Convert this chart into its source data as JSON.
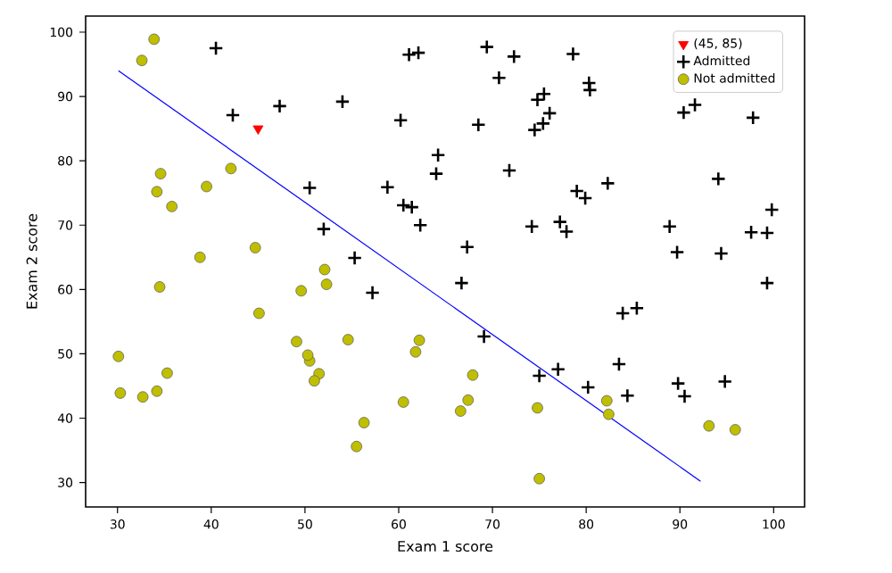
{
  "chart_data": {
    "type": "scatter",
    "xlabel": "Exam 1 score",
    "ylabel": "Exam 2 score",
    "xlim": [
      26.6,
      103.3
    ],
    "ylim": [
      26.2,
      102.5
    ],
    "xticks": [
      30,
      40,
      50,
      60,
      70,
      80,
      90,
      100
    ],
    "yticks": [
      30,
      40,
      50,
      60,
      70,
      80,
      90,
      100
    ],
    "legend": "top right",
    "grid": false,
    "series": [
      {
        "name": "(45, 85)",
        "color": "#ff0000",
        "marker": "triangle",
        "x": [
          45
        ],
        "values": [
          85
        ]
      },
      {
        "name": "Admitted",
        "color": "#000000",
        "marker": "cross",
        "x": [
          60.2,
          79.0,
          61.1,
          75.0,
          76.1,
          84.4,
          82.3,
          69.4,
          54.0,
          69.1,
          70.7,
          77.0,
          89.7,
          77.9,
          62.3,
          80.2,
          61.4,
          85.4,
          52.0,
          64.2,
          83.9,
          94.4,
          77.2,
          97.8,
          62.1,
          91.6,
          79.9,
          99.3,
          90.5,
          97.6,
          74.2,
          71.8,
          75.4,
          40.5,
          80.3,
          66.7,
          64.0,
          72.3,
          60.5,
          58.8,
          99.8,
          47.3,
          50.5,
          88.9,
          94.8,
          67.3,
          57.2,
          80.4,
          68.5,
          75.5,
          78.6,
          94.1,
          90.4,
          74.5,
          89.8,
          83.5,
          42.3,
          99.3,
          55.3,
          74.8
        ],
        "values": [
          86.3,
          75.3,
          96.5,
          46.6,
          87.4,
          43.5,
          76.5,
          97.7,
          89.2,
          52.7,
          92.9,
          47.6,
          65.8,
          69.0,
          70.0,
          44.8,
          72.8,
          57.1,
          69.4,
          80.9,
          56.3,
          65.6,
          70.5,
          86.7,
          96.8,
          88.7,
          74.2,
          61.0,
          43.4,
          68.9,
          69.8,
          78.5,
          85.8,
          97.5,
          92.1,
          61.0,
          78.0,
          96.2,
          73.1,
          75.9,
          72.4,
          88.5,
          75.8,
          69.8,
          45.7,
          66.6,
          59.5,
          91.0,
          85.6,
          90.4,
          96.6,
          77.2,
          87.5,
          84.8,
          45.4,
          48.4,
          87.1,
          68.8,
          64.9,
          89.5
        ]
      },
      {
        "name": "Not admitted",
        "color": "#bfbf00",
        "marker": "circle",
        "x": [
          34.6,
          30.3,
          35.8,
          45.1,
          95.9,
          75.0,
          39.5,
          67.9,
          67.4,
          50.5,
          34.2,
          93.1,
          61.8,
          38.8,
          52.1,
          54.6,
          33.9,
          74.8,
          34.2,
          51.5,
          82.4,
          51.0,
          62.2,
          34.5,
          50.3,
          49.6,
          32.6,
          35.3,
          56.3,
          30.1,
          44.7,
          66.6,
          49.1,
          32.7,
          60.5,
          82.2,
          42.1,
          52.3,
          55.5
        ],
        "values": [
          78.0,
          43.9,
          72.9,
          56.3,
          38.2,
          30.6,
          76.0,
          46.7,
          42.8,
          48.9,
          44.2,
          38.8,
          50.3,
          65.0,
          63.1,
          52.2,
          98.9,
          41.6,
          75.2,
          46.9,
          40.6,
          45.8,
          52.1,
          60.4,
          49.8,
          59.8,
          95.6,
          47.0,
          39.3,
          49.6,
          66.5,
          41.1,
          51.9,
          43.3,
          42.5,
          42.7,
          78.8,
          60.8,
          35.6
        ]
      },
      {
        "type": "line",
        "color": "#0000ff",
        "marker": "none",
        "x": [
          30.1,
          92.2
        ],
        "values": [
          94.0,
          30.2
        ]
      }
    ]
  }
}
